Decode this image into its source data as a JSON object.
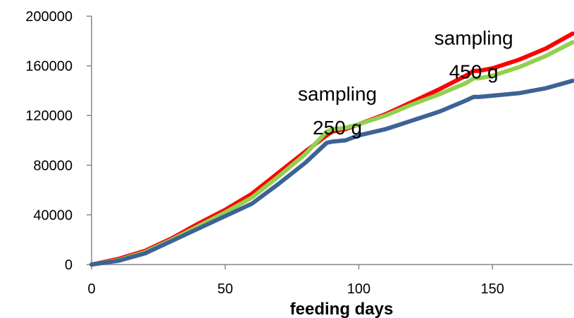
{
  "chart_data": {
    "type": "line",
    "title": "",
    "xlabel": "feeding days",
    "ylabel": "",
    "xlim": [
      0,
      180
    ],
    "ylim": [
      0,
      200000
    ],
    "xticks": [
      0,
      50,
      100,
      150
    ],
    "xtick_labels": [
      "0",
      "50",
      "100",
      "150"
    ],
    "yticks": [
      0,
      40000,
      80000,
      120000,
      160000,
      200000
    ],
    "ytick_labels": [
      "0",
      "40000",
      "80000",
      "120000",
      "160000",
      "200000"
    ],
    "grid": false,
    "legend": "none",
    "annotations": [
      {
        "lines": [
          "sampling",
          "250 g"
        ],
        "x": 92,
        "y": 132000
      },
      {
        "lines": [
          "sampling",
          "450 g"
        ],
        "x": 143,
        "y": 177000
      }
    ],
    "series": [
      {
        "color": "#ff0000",
        "x": [
          0,
          10,
          20,
          30,
          40,
          50,
          60,
          70,
          80,
          88,
          90,
          95,
          100,
          110,
          120,
          130,
          140,
          143,
          145,
          150,
          160,
          170,
          180
        ],
        "y": [
          0,
          4500,
          11000,
          21000,
          33000,
          44000,
          57000,
          74000,
          91000,
          104000,
          107000,
          109000,
          113000,
          121000,
          131000,
          141000,
          152000,
          156000,
          156000,
          158000,
          165000,
          174000,
          186000
        ]
      },
      {
        "color": "#92d050",
        "x": [
          0,
          10,
          20,
          30,
          40,
          50,
          60,
          70,
          80,
          88,
          90,
          95,
          100,
          110,
          120,
          130,
          140,
          143,
          145,
          150,
          160,
          170,
          180
        ],
        "y": [
          0,
          3500,
          10000,
          20000,
          31000,
          42000,
          54000,
          71000,
          89000,
          107000,
          109000,
          110000,
          113000,
          120000,
          129000,
          137000,
          146000,
          150000,
          150000,
          152000,
          159000,
          168000,
          179000
        ]
      },
      {
        "color": "#3c6394",
        "x": [
          0,
          10,
          20,
          30,
          40,
          50,
          60,
          70,
          80,
          88,
          90,
          95,
          100,
          110,
          120,
          130,
          140,
          143,
          145,
          150,
          160,
          170,
          180
        ],
        "y": [
          0,
          3000,
          9000,
          19000,
          29000,
          39000,
          49000,
          65000,
          82000,
          98000,
          99000,
          100000,
          104000,
          109000,
          116000,
          123000,
          132000,
          135000,
          135000,
          136000,
          138000,
          142000,
          148000
        ]
      }
    ]
  }
}
